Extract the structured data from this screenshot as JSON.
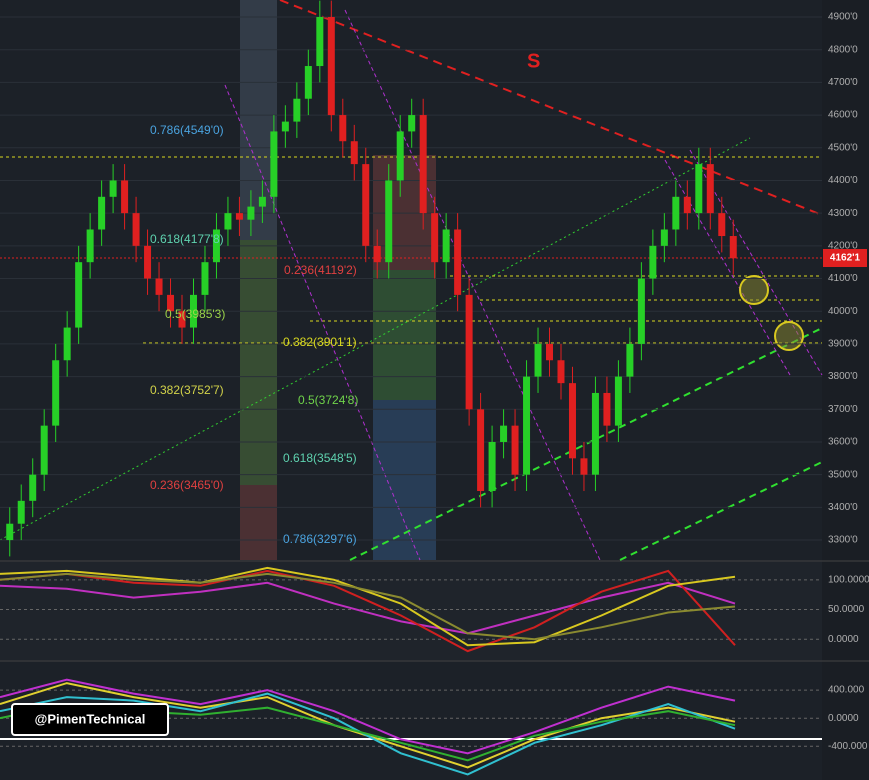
{
  "chart_data": [
    {
      "type": "candlestick",
      "open": [
        3300,
        3350,
        3420,
        3500,
        3650,
        3850,
        3950,
        4150,
        4250,
        4350,
        4400,
        4300,
        4200,
        4100,
        4050,
        4000,
        3950,
        4050,
        4150,
        4250,
        4300,
        4280,
        4320,
        4350,
        4550,
        4580,
        4650,
        4750,
        4900,
        4600,
        4520,
        4450,
        4200,
        4150,
        4400,
        4550,
        4600,
        4300,
        4150,
        4250,
        4050,
        3700,
        3450,
        3600,
        3650,
        3500,
        3800,
        3900,
        3850,
        3780,
        3550,
        3500,
        3750,
        3650,
        3800,
        3900,
        4100,
        4200,
        4250,
        4350,
        4300,
        4450,
        4300,
        4230
      ],
      "high": [
        3400,
        3470,
        3550,
        3700,
        3900,
        4000,
        4200,
        4300,
        4400,
        4450,
        4450,
        4350,
        4250,
        4150,
        4100,
        4050,
        4100,
        4200,
        4300,
        4350,
        4350,
        4370,
        4400,
        4600,
        4630,
        4700,
        4800,
        4950,
        4950,
        4650,
        4570,
        4500,
        4250,
        4450,
        4600,
        4650,
        4650,
        4350,
        4300,
        4300,
        4100,
        3750,
        3650,
        3700,
        3700,
        3850,
        3950,
        3950,
        3900,
        3830,
        3600,
        3800,
        3800,
        3850,
        3950,
        4150,
        4250,
        4300,
        4400,
        4400,
        4500,
        4500,
        4350,
        4280
      ],
      "low": [
        3250,
        3300,
        3370,
        3450,
        3600,
        3800,
        3900,
        4100,
        4200,
        4300,
        4250,
        4150,
        4050,
        4000,
        3950,
        3900,
        3900,
        4000,
        4100,
        4200,
        4230,
        4230,
        4270,
        4300,
        4500,
        4530,
        4600,
        4700,
        4550,
        4470,
        4400,
        4150,
        4100,
        4100,
        4350,
        4500,
        4250,
        4100,
        4100,
        4000,
        3650,
        3400,
        3400,
        3550,
        3450,
        3450,
        3750,
        3800,
        3730,
        3500,
        3450,
        3450,
        3600,
        3600,
        3750,
        3850,
        4050,
        4150,
        4200,
        4250,
        4250,
        4250,
        4180,
        4112
      ],
      "close": [
        3350,
        3420,
        3500,
        3650,
        3850,
        3950,
        4150,
        4250,
        4350,
        4400,
        4300,
        4200,
        4100,
        4050,
        4000,
        3950,
        4050,
        4150,
        4250,
        4300,
        4280,
        4320,
        4350,
        4550,
        4580,
        4650,
        4750,
        4900,
        4600,
        4520,
        4450,
        4200,
        4150,
        4400,
        4550,
        4600,
        4300,
        4150,
        4250,
        4050,
        3700,
        3450,
        3600,
        3650,
        3500,
        3800,
        3900,
        3850,
        3780,
        3550,
        3500,
        3750,
        3650,
        3800,
        3900,
        4100,
        4200,
        4250,
        4350,
        4300,
        4450,
        4300,
        4230,
        4162
      ],
      "up_color": "#27d027",
      "down_color": "#e02020",
      "ylim": [
        3239,
        4952
      ],
      "yticks": [
        {
          "value": 3300,
          "label": "3300'0"
        },
        {
          "value": 3400,
          "label": "3400'0"
        },
        {
          "value": 3500,
          "label": "3500'0"
        },
        {
          "value": 3600,
          "label": "3600'0"
        },
        {
          "value": 3700,
          "label": "3700'0"
        },
        {
          "value": 3800,
          "label": "3800'0"
        },
        {
          "value": 3900,
          "label": "3900'0"
        },
        {
          "value": 4000,
          "label": "4000'0"
        },
        {
          "value": 4100,
          "label": "4100'0"
        },
        {
          "value": 4200,
          "label": "4200'0"
        },
        {
          "value": 4300,
          "label": "4300'0"
        },
        {
          "value": 4400,
          "label": "4400'0"
        },
        {
          "value": 4500,
          "label": "4500'0"
        },
        {
          "value": 4600,
          "label": "4600'0"
        },
        {
          "value": 4700,
          "label": "4700'0"
        },
        {
          "value": 4800,
          "label": "4800'0"
        },
        {
          "value": 4900,
          "label": "4900'0"
        }
      ],
      "grid": true,
      "last_price": "4162'1",
      "annotations": [
        "S",
        "0.786(4549'0)",
        "0.618(4177'8)",
        "0.5(3985'3)",
        "0.382(3752'7)",
        "0.236(3465'0)",
        "0.236(4119'2)",
        "0.382(3901'1)",
        "0.5(3724'8)",
        "0.618(3548'5)",
        "0.786(3297'6)"
      ]
    },
    {
      "type": "line",
      "categories": [
        null,
        null,
        null,
        null,
        null,
        null,
        null,
        null,
        null,
        null,
        null,
        null
      ],
      "ylim": [
        -35,
        130
      ],
      "yticks": [
        {
          "value": 100,
          "label": "100.0000"
        },
        {
          "value": 50,
          "label": "50.0000"
        },
        {
          "value": 0,
          "label": "0.0000"
        }
      ],
      "grid": true,
      "series": [
        {
          "color": "#c030c0",
          "values": [
            90,
            85,
            70,
            80,
            95,
            60,
            30,
            10,
            40,
            70,
            95,
            60
          ]
        },
        {
          "color": "#d02020",
          "values": [
            100,
            110,
            95,
            90,
            115,
            90,
            40,
            -20,
            20,
            80,
            115,
            -10
          ]
        },
        {
          "color": "#d8c820",
          "values": [
            110,
            115,
            105,
            95,
            120,
            100,
            60,
            -10,
            -5,
            40,
            90,
            105
          ]
        },
        {
          "color": "#8a8a30",
          "values": [
            100,
            110,
            100,
            95,
            110,
            95,
            70,
            10,
            0,
            20,
            45,
            55
          ]
        }
      ]
    },
    {
      "type": "line",
      "categories": [
        null,
        null,
        null,
        null,
        null,
        null,
        null,
        null,
        null,
        null,
        null,
        null
      ],
      "ylim": [
        -880,
        800
      ],
      "yticks": [
        {
          "value": 400,
          "label": "400.000"
        },
        {
          "value": 0,
          "label": "0.0000"
        },
        {
          "value": -400,
          "label": "-400.000"
        }
      ],
      "grid": true,
      "series": [
        {
          "color": "#c030d0",
          "values": [
            300,
            550,
            350,
            200,
            400,
            100,
            -300,
            -500,
            -200,
            150,
            450,
            250
          ]
        },
        {
          "color": "#e0d030",
          "values": [
            200,
            500,
            300,
            150,
            300,
            -100,
            -400,
            -700,
            -300,
            0,
            150,
            -50
          ]
        },
        {
          "color": "#30c0d0",
          "values": [
            100,
            300,
            250,
            100,
            350,
            0,
            -500,
            -800,
            -350,
            -100,
            200,
            -150
          ]
        },
        {
          "color": "#30b030",
          "values": [
            0,
            200,
            100,
            50,
            150,
            -100,
            -350,
            -600,
            -250,
            -50,
            100,
            -100
          ]
        }
      ]
    }
  ],
  "watermark": "@PimenTechnical"
}
